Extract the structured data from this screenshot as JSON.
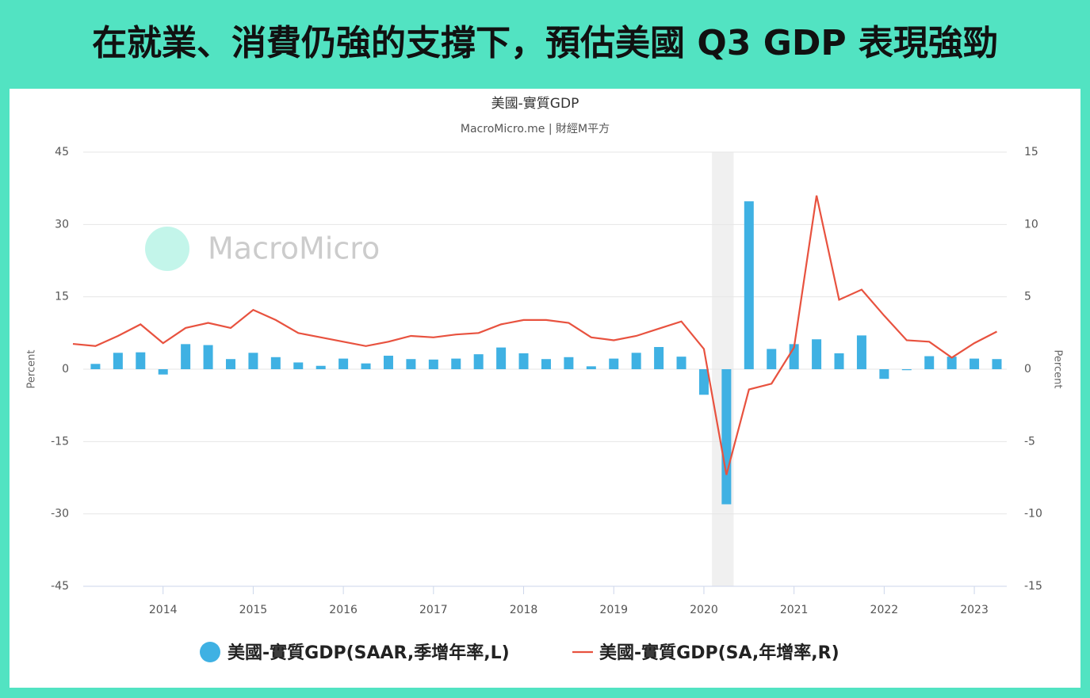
{
  "headline": "在就業、消費仍強的支撐下，預估美國 Q3 GDP 表現強勁",
  "chart_data": {
    "type": "bar-line",
    "title": "美國-實質GDP",
    "subtitle": "MacroMicro.me | 財經M平方",
    "watermark": "MacroMicro",
    "y_label": "Percent",
    "y2_label": "Percent",
    "x": [
      2013.0,
      2013.25,
      2013.5,
      2013.75,
      2014.0,
      2014.25,
      2014.5,
      2014.75,
      2015.0,
      2015.25,
      2015.5,
      2015.75,
      2016.0,
      2016.25,
      2016.5,
      2016.75,
      2017.0,
      2017.25,
      2017.5,
      2017.75,
      2018.0,
      2018.25,
      2018.5,
      2018.75,
      2019.0,
      2019.25,
      2019.5,
      2019.75,
      2020.0,
      2020.25,
      2020.5,
      2020.75,
      2021.0,
      2021.25,
      2021.5,
      2021.75,
      2022.0,
      2022.25,
      2022.5,
      2022.75,
      2023.0,
      2023.25
    ],
    "xlim": [
      2013.0,
      2023.36
    ],
    "xticks": [
      2014,
      2015,
      2016,
      2017,
      2018,
      2019,
      2020,
      2021,
      2022,
      2023
    ],
    "ylim": [
      -45,
      45
    ],
    "yticks": [
      -45,
      -30,
      -15,
      0,
      15,
      30,
      45
    ],
    "y2lim": [
      -15,
      15
    ],
    "y2ticks": [
      -15,
      -10,
      -5,
      0,
      5,
      10,
      15
    ],
    "grid": true,
    "recession": [
      2020.09,
      2020.33
    ],
    "series": [
      {
        "name": "美國-實質GDP(SAAR,季增年率,L)",
        "type": "bar",
        "color": "#3fb1e3",
        "values": [
          null,
          1.1,
          3.4,
          3.5,
          -1.1,
          5.2,
          5.0,
          2.1,
          3.4,
          2.5,
          1.4,
          0.7,
          2.2,
          1.2,
          2.8,
          2.1,
          2.0,
          2.2,
          3.1,
          4.5,
          3.3,
          2.1,
          2.5,
          0.6,
          2.2,
          3.4,
          4.6,
          2.6,
          -5.3,
          -28.0,
          34.8,
          4.2,
          5.2,
          6.2,
          3.3,
          7.0,
          -2.0,
          -0.2,
          2.7,
          2.6,
          2.2,
          2.1
        ]
      },
      {
        "name": "美國-實質GDP(SA,年增率,R)",
        "type": "line",
        "axis": "y2",
        "color": "#e8523f",
        "values": [
          1.75,
          1.6,
          2.3,
          3.1,
          1.8,
          2.85,
          3.2,
          2.85,
          4.1,
          3.4,
          2.5,
          2.2,
          1.9,
          1.6,
          1.9,
          2.3,
          2.2,
          2.4,
          2.5,
          3.1,
          3.4,
          3.4,
          3.2,
          2.2,
          2.0,
          2.3,
          2.8,
          3.3,
          1.4,
          -7.3,
          -1.4,
          -1.0,
          1.5,
          12.0,
          4.8,
          5.5,
          3.7,
          2.0,
          1.9,
          0.8,
          1.8,
          2.6
        ]
      }
    ]
  }
}
